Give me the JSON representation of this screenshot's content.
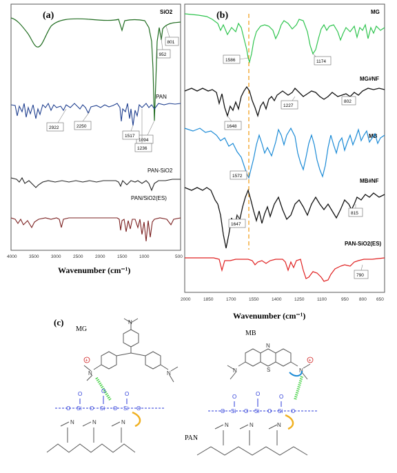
{
  "panel_a": {
    "label": "(a)",
    "xlabel": "Wavenumber (cm⁻¹)",
    "ticks": [
      "4000",
      "3500",
      "3000",
      "2500",
      "2000",
      "1500",
      "1000",
      "500"
    ],
    "spectra": [
      {
        "name": "SiO2",
        "color": "#1e6b1e"
      },
      {
        "name": "PAN",
        "color": "#1f3f8f"
      },
      {
        "name": "PAN-SiO2",
        "color": "#222222"
      },
      {
        "name": "PAN/SiO2(ES)",
        "color": "#7a1f1f"
      }
    ],
    "annotations": [
      "801",
      "952",
      "1094",
      "2922",
      "2250",
      "1517",
      "1236"
    ]
  },
  "panel_b": {
    "label": "(b)",
    "xlabel": "Wavenumber (cm⁻¹)",
    "ticks": [
      "2000",
      "1850",
      "1700",
      "1550",
      "1400",
      "1250",
      "1100",
      "950",
      "800",
      "650"
    ],
    "spectra": [
      {
        "name": "MG",
        "color": "#2ec44e"
      },
      {
        "name": "MG#NF",
        "color": "#111111"
      },
      {
        "name": "MB",
        "color": "#1a8ad6"
      },
      {
        "name": "MB#NF",
        "color": "#111111"
      },
      {
        "name": "PAN-SiO2(ES)",
        "color": "#e02020"
      }
    ],
    "annotations": [
      "1586",
      "1174",
      "1648",
      "1227",
      "802",
      "1572",
      "1647",
      "815",
      "790"
    ],
    "marker_color": "#f0a020"
  },
  "panel_c": {
    "label": "(c)",
    "molecules": [
      "MG",
      "MB"
    ],
    "polymer": "PAN",
    "atoms": {
      "N": "N",
      "O": "O",
      "Si": "Si",
      "S": "S"
    }
  }
}
